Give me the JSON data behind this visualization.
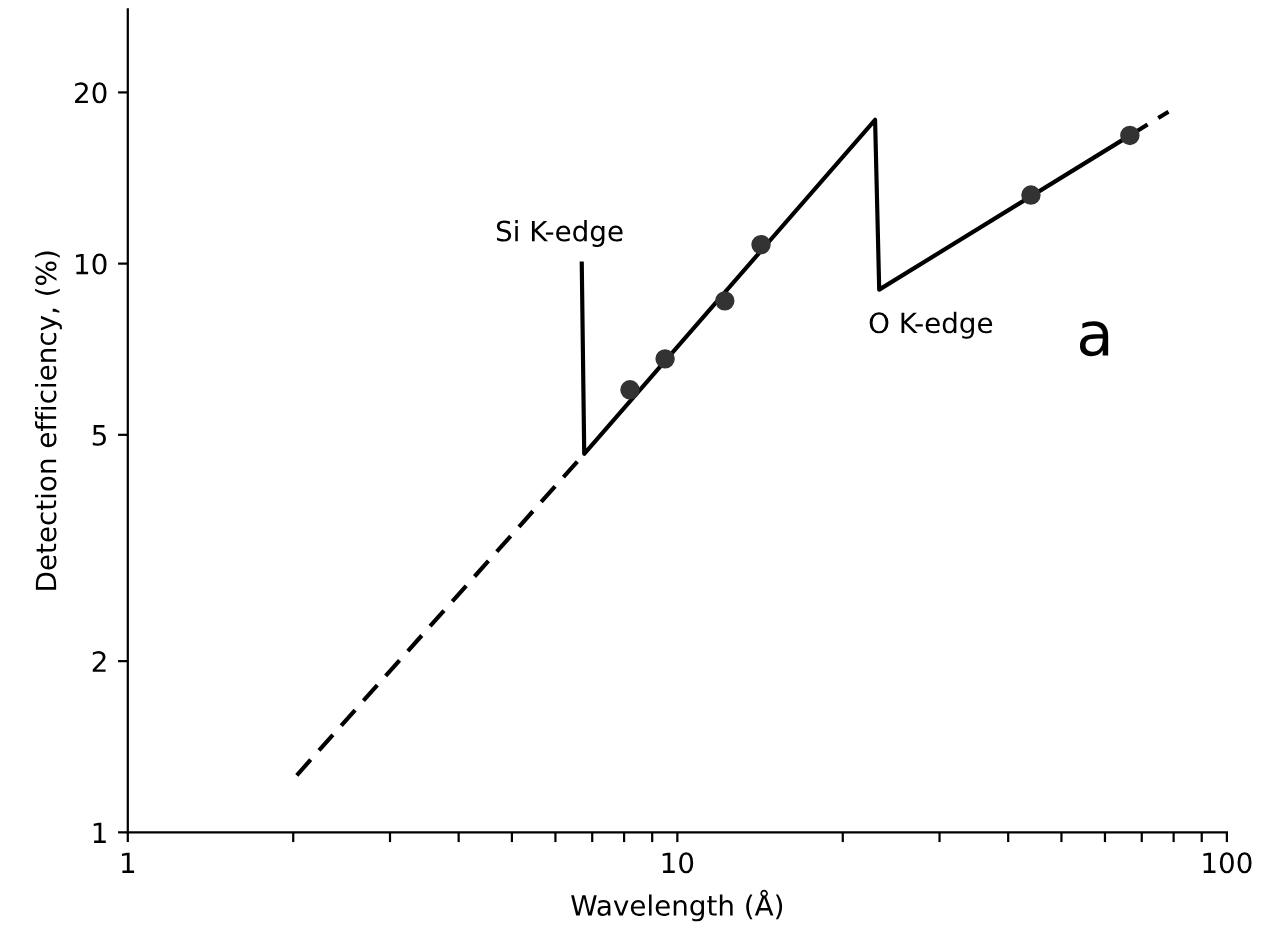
{
  "chart_data": {
    "type": "line",
    "xlabel": "Wavelength (Å)",
    "ylabel": "Detection efficiency, (%)",
    "log": "xy",
    "xlim": [
      1,
      100
    ],
    "ylim": [
      1,
      28
    ],
    "xticks": [
      1,
      {
        "value": 2,
        "label": null
      },
      {
        "value": 3,
        "label": null
      },
      {
        "value": 4,
        "label": null
      },
      {
        "value": 5,
        "label": null
      },
      {
        "value": 6,
        "label": null
      },
      {
        "value": 7,
        "label": null
      },
      {
        "value": 8,
        "label": null
      },
      {
        "value": 9,
        "label": null
      },
      10,
      {
        "value": 20,
        "label": null
      },
      {
        "value": 30,
        "label": null
      },
      {
        "value": 40,
        "label": null
      },
      {
        "value": 50,
        "label": null
      },
      {
        "value": 60,
        "label": null
      },
      {
        "value": 70,
        "label": null
      },
      {
        "value": 80,
        "label": null
      },
      {
        "value": 90,
        "label": null
      },
      100
    ],
    "yticks": [
      1,
      2,
      5,
      10,
      20
    ],
    "series": [
      {
        "line_style": "dashed",
        "color": "#000000",
        "x": [
          2.03,
          6.77
        ],
        "values": [
          1.26,
          4.63
        ]
      },
      {
        "line_style": "solid",
        "color": "#000000",
        "x": [
          6.7,
          6.77,
          22.9,
          23.3,
          66.6
        ],
        "values": [
          10.0,
          4.63,
          17.9,
          9.0,
          16.8
        ]
      },
      {
        "line_style": "dashed",
        "color": "#000000",
        "x": [
          66.6,
          78.3
        ],
        "values": [
          16.8,
          18.5
        ]
      },
      {
        "type": "scatter",
        "marker": "circle",
        "color": "#333333",
        "x": [
          8.2,
          9.5,
          12.2,
          14.2,
          44,
          66.6
        ],
        "values": [
          6.0,
          6.8,
          8.6,
          10.8,
          13.2,
          16.8
        ]
      }
    ],
    "annotations": [
      {
        "text": "Si K-edge",
        "x": 6.7,
        "y": 10.0
      },
      {
        "text": "O K-edge",
        "x": 23.3,
        "y": 9.0
      },
      "a"
    ]
  }
}
